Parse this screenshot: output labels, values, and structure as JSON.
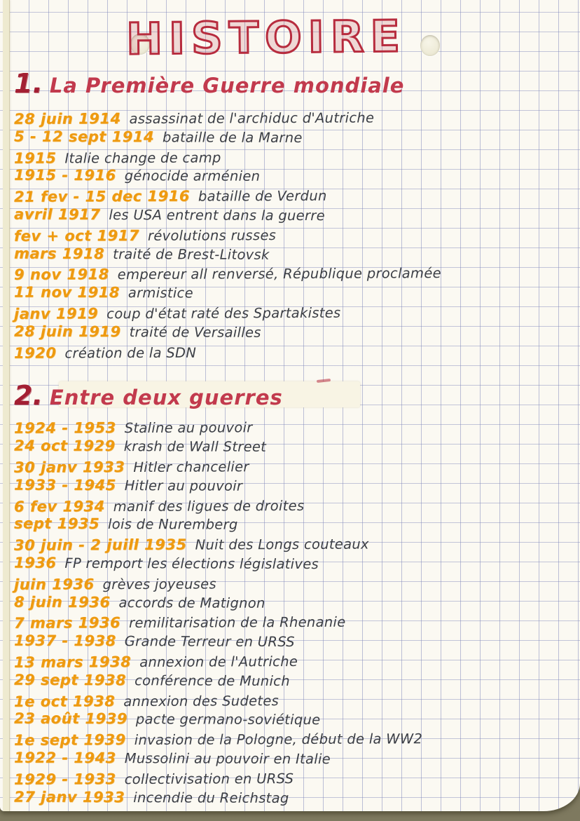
{
  "page": {
    "title": "HISTOIRE",
    "colors": {
      "heading_red": "#b72c3e",
      "section_number_red": "#a31f33",
      "date_orange": "#ee9a10",
      "ink": "#3b3e45",
      "grid_line": "#7c84b8",
      "paper": "#fbf9f2",
      "edge_strip": "#eeead0",
      "correction_fluid": "#f8f4e4",
      "desk": "#8f8a72"
    }
  },
  "sections": [
    {
      "number": "1.",
      "heading": "La Première Guerre mondiale",
      "whiteout": false,
      "entries": [
        {
          "date": "28 juin 1914",
          "text": "assassinat de l'archiduc d'Autriche"
        },
        {
          "date": "5 - 12 sept 1914",
          "text": "bataille de la Marne"
        },
        {
          "date": "1915",
          "text": "Italie change de camp"
        },
        {
          "date": "1915 - 1916",
          "text": "génocide arménien"
        },
        {
          "date": "21 fev - 15 dec 1916",
          "text": "bataille de Verdun"
        },
        {
          "date": "avril 1917",
          "text": "les USA entrent dans la guerre"
        },
        {
          "date": "fev + oct 1917",
          "text": "révolutions russes"
        },
        {
          "date": "mars 1918",
          "text": "traité de Brest-Litovsk"
        },
        {
          "date": "9 nov 1918",
          "text": "empereur all renversé, République proclamée"
        },
        {
          "date": "11 nov 1918",
          "text": "armistice"
        },
        {
          "date": "janv 1919",
          "text": "coup d'état raté des Spartakistes"
        },
        {
          "date": "28 juin 1919",
          "text": "traité de Versailles"
        },
        {
          "date": "1920",
          "text": "création de la SDN"
        }
      ]
    },
    {
      "number": "2.",
      "heading": "Entre deux guerres",
      "whiteout": true,
      "entries": [
        {
          "date": "1924 - 1953",
          "text": "Staline au pouvoir"
        },
        {
          "date": "24 oct 1929",
          "text": "krash de Wall Street"
        },
        {
          "date": "30 janv 1933",
          "text": "Hitler chancelier"
        },
        {
          "date": "1933 - 1945",
          "text": "Hitler au pouvoir"
        },
        {
          "date": "6 fev 1934",
          "text": "manif des ligues de droites"
        },
        {
          "date": "sept 1935",
          "text": "lois de Nuremberg"
        },
        {
          "date": "30 juin - 2 juill 1935",
          "text": "Nuit des Longs couteaux"
        },
        {
          "date": "1936",
          "text": "FP remport les élections législatives"
        },
        {
          "date": "juin 1936",
          "text": "grèves joyeuses"
        },
        {
          "date": "8 juin 1936",
          "text": "accords de Matignon"
        },
        {
          "date": "7 mars 1936",
          "text": "remilitarisation de la Rhenanie"
        },
        {
          "date": "1937 - 1938",
          "text": "Grande Terreur en URSS"
        },
        {
          "date": "13 mars 1938",
          "text": "annexion de l'Autriche"
        },
        {
          "date": "29 sept 1938",
          "text": "conférence de Munich"
        },
        {
          "date": "1e oct 1938",
          "text": "annexion des Sudetes"
        },
        {
          "date": "23 août 1939",
          "text": "pacte germano-soviétique"
        },
        {
          "date": "1e sept 1939",
          "text": "invasion de la Pologne, début de la WW2"
        },
        {
          "date": "1922 - 1943",
          "text": "Mussolini au pouvoir en Italie"
        },
        {
          "date": "1929 - 1933",
          "text": "collectivisation en URSS"
        },
        {
          "date": "27 janv 1933",
          "text": "incendie du Reichstag"
        }
      ]
    }
  ]
}
